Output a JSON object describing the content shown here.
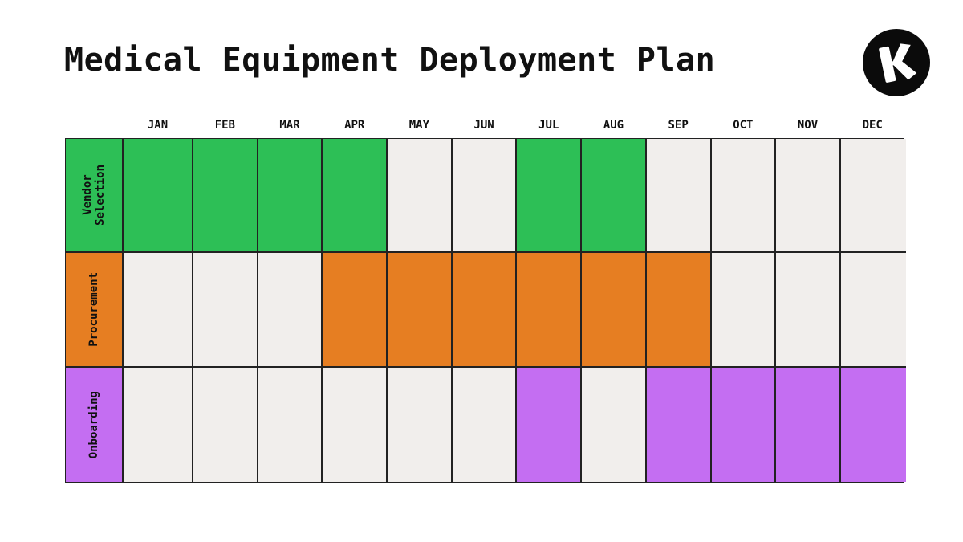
{
  "title": "Medical Equipment Deployment Plan",
  "logo_icon": "k-logo-icon",
  "months": [
    "JAN",
    "FEB",
    "MAR",
    "APR",
    "MAY",
    "JUN",
    "JUL",
    "AUG",
    "SEP",
    "OCT",
    "NOV",
    "DEC"
  ],
  "empty_color": "#f1eeec",
  "rows": [
    {
      "label": "Vendor\nSelection",
      "color": "#2dbf56",
      "active": [
        1,
        1,
        1,
        1,
        0,
        0,
        1,
        1,
        0,
        0,
        0,
        0
      ]
    },
    {
      "label": "Procurement",
      "color": "#e67e22",
      "active": [
        0,
        0,
        0,
        1,
        1,
        1,
        1,
        1,
        1,
        0,
        0,
        0
      ]
    },
    {
      "label": "Onboarding",
      "color": "#c46ef2",
      "active": [
        0,
        0,
        0,
        0,
        0,
        0,
        1,
        0,
        1,
        1,
        1,
        1
      ]
    }
  ]
}
